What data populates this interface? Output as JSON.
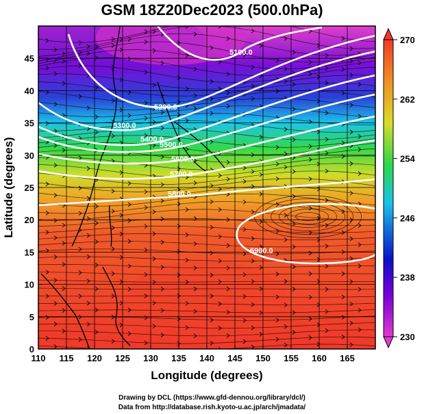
{
  "title": "GSM 18Z20Dec2023 (500.0hPa)",
  "axes": {
    "x_label": "Longitude (degrees)",
    "y_label": "Latitude  (degrees)",
    "x_ticks": [
      "110",
      "115",
      "120",
      "125",
      "130",
      "135",
      "140",
      "145",
      "150",
      "155",
      "160",
      "165"
    ],
    "y_ticks": [
      "0",
      "5",
      "10",
      "15",
      "20",
      "25",
      "30",
      "35",
      "40",
      "45"
    ]
  },
  "colorbar": {
    "min": 230,
    "max": 270,
    "tick_labels": [
      "230",
      "238",
      "246",
      "254",
      "262",
      "270"
    ],
    "colors": [
      "#d63ad0",
      "#6a00d8",
      "#1a3ad8",
      "#18c2e8",
      "#2cd84a",
      "#d6dc2c",
      "#f08a24",
      "#f03a2a"
    ]
  },
  "contours": [
    {
      "label": "5100.0",
      "value": 5100
    },
    {
      "label": "5200.0",
      "value": 5200
    },
    {
      "label": "5300.0",
      "value": 5300
    },
    {
      "label": "5400.0",
      "value": 5400
    },
    {
      "label": "5500.0",
      "value": 5500
    },
    {
      "label": "5600.0",
      "value": 5600
    },
    {
      "label": "5700.0",
      "value": 5700
    },
    {
      "label": "5800.0",
      "value": 5800
    },
    {
      "label": "5900.0",
      "value": 5900
    }
  ],
  "credits": {
    "line1": "Drawing by DCL (https://www.gfd-dennou.org/library/dcl/)",
    "line2": "Data from http://database.rish.kyoto-u.ac.jp/arch/jmadata/"
  }
}
